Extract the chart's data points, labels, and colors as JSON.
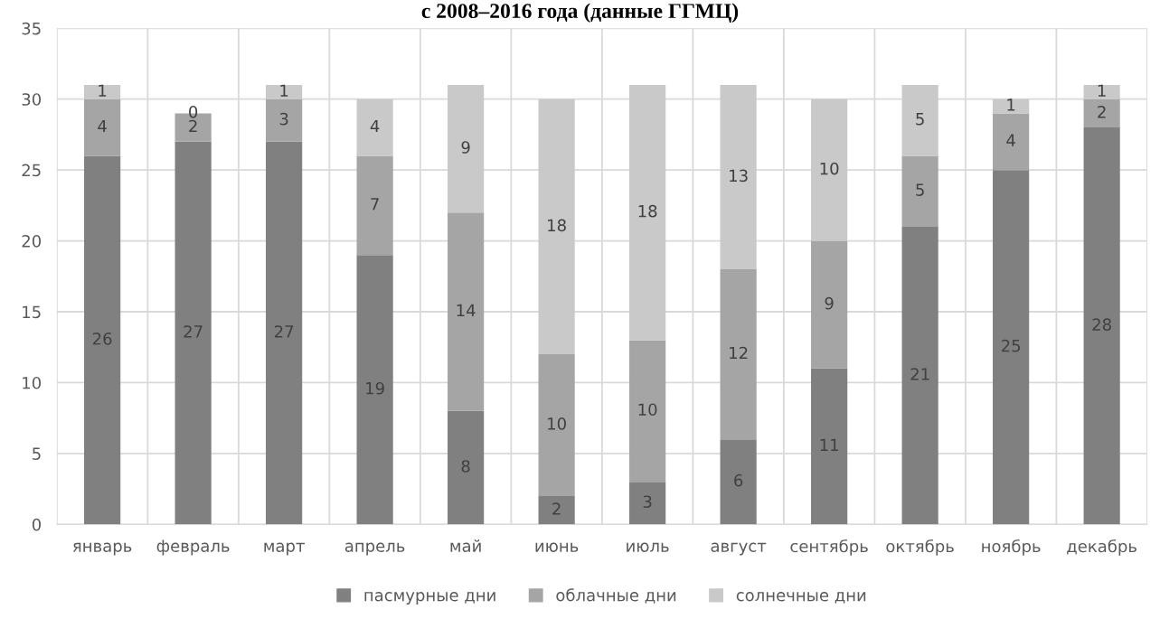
{
  "chart_data": {
    "type": "bar",
    "title": "с 2008–2016 года (данные ГГМЦ)",
    "categories": [
      "январь",
      "февраль",
      "март",
      "апрель",
      "май",
      "июнь",
      "июль",
      "август",
      "сентябрь",
      "октябрь",
      "ноябрь",
      "декабрь"
    ],
    "series": [
      {
        "name": "пасмурные дни",
        "color": "#808080",
        "values": [
          26,
          27,
          27,
          19,
          8,
          2,
          3,
          6,
          11,
          21,
          25,
          28
        ]
      },
      {
        "name": "облачные дни",
        "color": "#a5a5a5",
        "values": [
          4,
          2,
          3,
          7,
          14,
          10,
          10,
          12,
          9,
          5,
          4,
          2
        ]
      },
      {
        "name": "солнечные дни",
        "color": "#c9c9c9",
        "values": [
          1,
          0,
          1,
          4,
          9,
          18,
          18,
          13,
          10,
          5,
          1,
          1
        ]
      }
    ],
    "stacked": true,
    "data_labels": true,
    "ylim": [
      0,
      35
    ],
    "yticks": [
      0,
      5,
      10,
      15,
      20,
      25,
      30,
      35
    ],
    "grid": true,
    "legend": "bottom"
  }
}
